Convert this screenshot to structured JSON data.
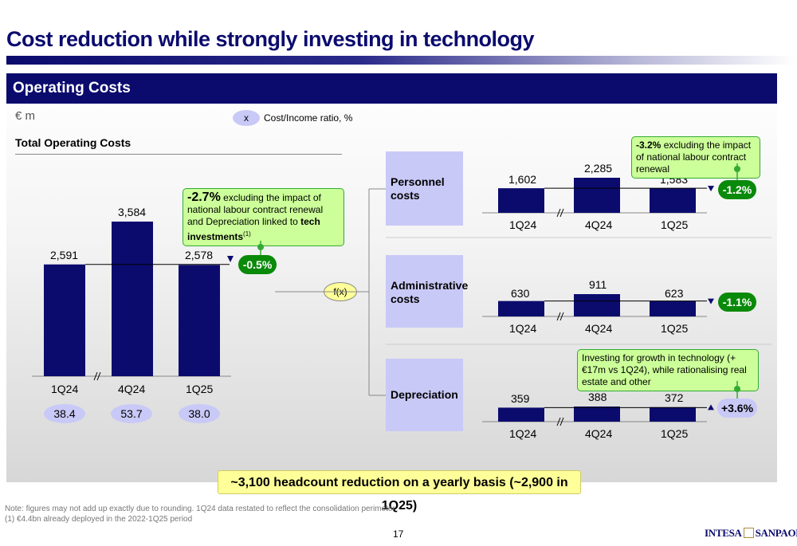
{
  "title": "Cost reduction while strongly investing in technology",
  "panel_title": "Operating Costs",
  "unit": "€ m",
  "legend": {
    "marker": "x",
    "text": "Cost/Income ratio, %"
  },
  "section_title": "Total Operating Costs",
  "colors": {
    "navy": "#0b0b6e",
    "lavender": "#c9c9f7",
    "green": "#0a8a0a",
    "callout_green": "#ccff99",
    "yellow": "#ffff99"
  },
  "chart_data": [
    {
      "type": "bar",
      "name": "Total Operating Costs",
      "categories": [
        "1Q24",
        "4Q24",
        "1Q25"
      ],
      "values": [
        2591,
        3584,
        2578
      ],
      "value_labels": [
        "2,591",
        "3,584",
        "2,578"
      ],
      "cost_income_ratio": [
        "38.4",
        "53.7",
        "38.0"
      ],
      "change": "-0.5%",
      "callout": {
        "pct": "-2.7%",
        "text1": "excluding the impact of national labour contract renewal and Depreciation linked to ",
        "bold": "tech investments",
        "sup": "(1)"
      }
    },
    {
      "type": "bar",
      "name": "Personnel costs",
      "categories": [
        "1Q24",
        "4Q24",
        "1Q25"
      ],
      "values": [
        1602,
        2285,
        1583
      ],
      "value_labels": [
        "1,602",
        "2,285",
        "1,583"
      ],
      "change": "-1.2%",
      "callout": {
        "pct": "-3.2%",
        "text1": "excluding the impact of national labour contract renewal"
      }
    },
    {
      "type": "bar",
      "name": "Administrative costs",
      "categories": [
        "1Q24",
        "4Q24",
        "1Q25"
      ],
      "values": [
        630,
        911,
        623
      ],
      "value_labels": [
        "630",
        "911",
        "623"
      ],
      "change": "-1.1%"
    },
    {
      "type": "bar",
      "name": "Depreciation",
      "categories": [
        "1Q24",
        "4Q24",
        "1Q25"
      ],
      "values": [
        359,
        388,
        372
      ],
      "value_labels": [
        "359",
        "388",
        "372"
      ],
      "change": "+3.6%",
      "callout": {
        "text1": "Investing for growth in technology (+€17m vs 1Q24), while rationalising real estate and other"
      }
    }
  ],
  "categories_boxes": [
    {
      "line1": "Personnel",
      "line2": "costs"
    },
    {
      "line1": "Administrative",
      "line2": "costs"
    },
    {
      "line1": "Depreciation",
      "line2": ""
    }
  ],
  "fx_label": "f(x)",
  "banner": "~3,100 headcount reduction on a yearly basis (~2,900 in 1Q25)",
  "notes": [
    "Note: figures may not add up exactly due to rounding. 1Q24 data restated to reflect the consolidation perimeter",
    "(1)    €4.4bn already deployed in the 2022-1Q25 period"
  ],
  "page_number": "17",
  "logo": {
    "left": "INTESA",
    "right": "SANPAOLO"
  }
}
